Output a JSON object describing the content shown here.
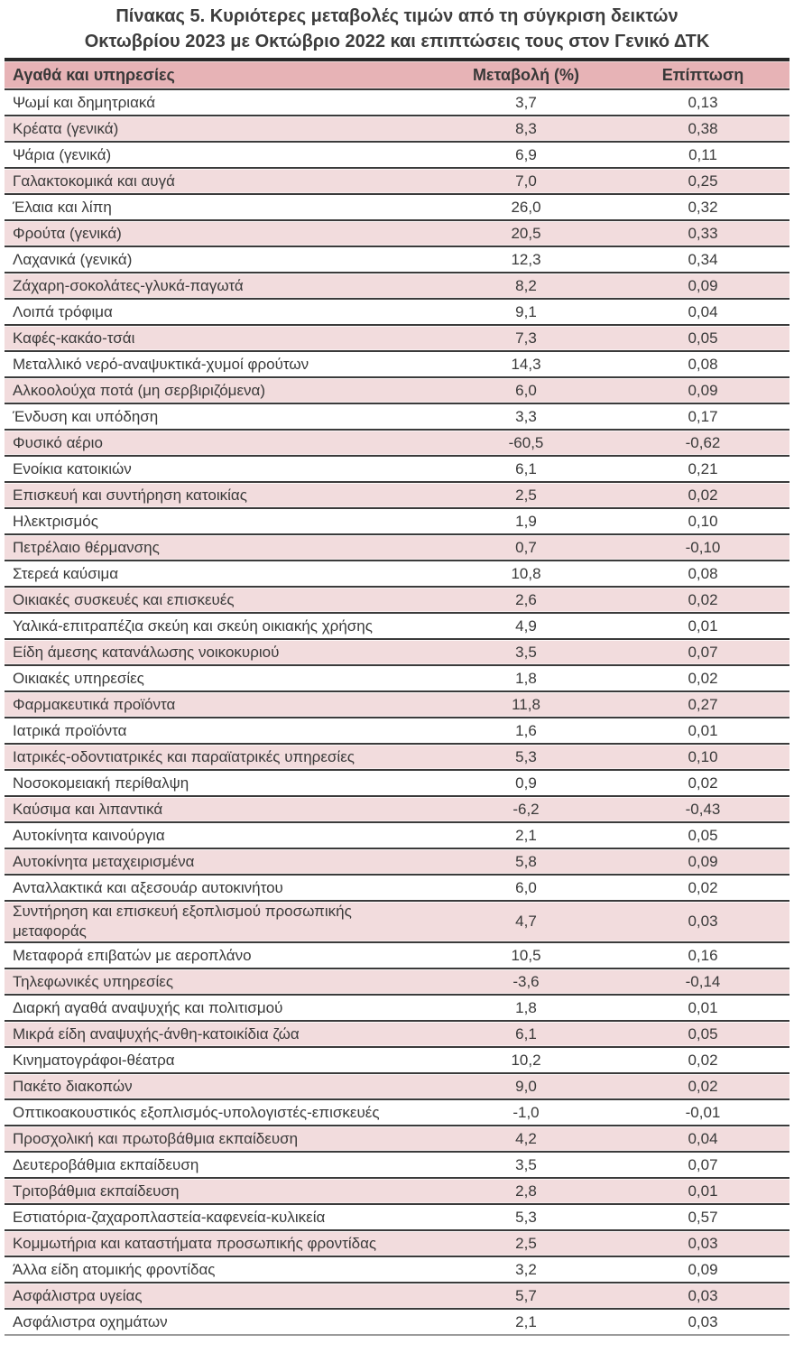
{
  "title": {
    "line1": "Πίνακας  5. Κυριότερες μεταβολές τιμών από τη σύγκριση δεικτών",
    "line2": "Οκτωβρίου 2023 με Οκτώβριο 2022 και επιπτώσεις τους στον Γενικό ΔΤΚ"
  },
  "table": {
    "headers": {
      "goods": "Αγαθά και υπηρεσίες",
      "change": "Μεταβολή (%)",
      "impact": "Επίπτωση"
    },
    "rows": [
      {
        "label": "Ψωμί και δημητριακά",
        "change": "3,7",
        "impact": "0,13"
      },
      {
        "label": "Κρέατα (γενικά)",
        "change": "8,3",
        "impact": "0,38"
      },
      {
        "label": "Ψάρια (γενικά)",
        "change": "6,9",
        "impact": "0,11"
      },
      {
        "label": "Γαλακτοκομικά και αυγά",
        "change": "7,0",
        "impact": "0,25"
      },
      {
        "label": "Έλαια και λίπη",
        "change": "26,0",
        "impact": "0,32"
      },
      {
        "label": "Φρούτα (γενικά)",
        "change": "20,5",
        "impact": "0,33"
      },
      {
        "label": "Λαχανικά (γενικά)",
        "change": "12,3",
        "impact": "0,34"
      },
      {
        "label": "Ζάχαρη-σοκολάτες-γλυκά-παγωτά",
        "change": "8,2",
        "impact": "0,09"
      },
      {
        "label": "Λοιπά τρόφιμα",
        "change": "9,1",
        "impact": "0,04"
      },
      {
        "label": "Καφές-κακάο-τσάι",
        "change": "7,3",
        "impact": "0,05"
      },
      {
        "label": "Μεταλλικό νερό-αναψυκτικά-χυμοί φρούτων",
        "change": "14,3",
        "impact": "0,08"
      },
      {
        "label": "Αλκοολούχα ποτά (μη σερβιριζόμενα)",
        "change": "6,0",
        "impact": "0,09"
      },
      {
        "label": "Ένδυση και υπόδηση",
        "change": "3,3",
        "impact": "0,17"
      },
      {
        "label": "Φυσικό αέριο",
        "change": "-60,5",
        "impact": "-0,62"
      },
      {
        "label": "Ενοίκια κατοικιών",
        "change": "6,1",
        "impact": "0,21"
      },
      {
        "label": "Επισκευή και συντήρηση κατοικίας",
        "change": "2,5",
        "impact": "0,02"
      },
      {
        "label": "Ηλεκτρισμός",
        "change": "1,9",
        "impact": "0,10"
      },
      {
        "label": "Πετρέλαιο θέρμανσης",
        "change": "0,7",
        "impact": "-0,10"
      },
      {
        "label": "Στερεά καύσιμα",
        "change": "10,8",
        "impact": "0,08"
      },
      {
        "label": "Οικιακές συσκευές και επισκευές",
        "change": "2,6",
        "impact": "0,02"
      },
      {
        "label": "Υαλικά-επιτραπέζια σκεύη και σκεύη οικιακής χρήσης",
        "change": "4,9",
        "impact": "0,01"
      },
      {
        "label": "Είδη άμεσης κατανάλωσης νοικοκυριού",
        "change": "3,5",
        "impact": "0,07"
      },
      {
        "label": "Οικιακές υπηρεσίες",
        "change": "1,8",
        "impact": "0,02"
      },
      {
        "label": "Φαρμακευτικά προϊόντα",
        "change": "11,8",
        "impact": "0,27"
      },
      {
        "label": "Ιατρικά προϊόντα",
        "change": "1,6",
        "impact": "0,01"
      },
      {
        "label": "Ιατρικές-οδοντιατρικές και παραϊατρικές υπηρεσίες",
        "change": "5,3",
        "impact": "0,10"
      },
      {
        "label": "Νοσοκομειακή περίθαλψη",
        "change": "0,9",
        "impact": "0,02"
      },
      {
        "label": "Καύσιμα και λιπαντικά",
        "change": "-6,2",
        "impact": "-0,43"
      },
      {
        "label": "Αυτοκίνητα καινούργια",
        "change": "2,1",
        "impact": "0,05"
      },
      {
        "label": "Αυτοκίνητα μεταχειρισμένα",
        "change": "5,8",
        "impact": "0,09"
      },
      {
        "label": "Ανταλλακτικά και αξεσουάρ αυτοκινήτου",
        "change": "6,0",
        "impact": "0,02"
      },
      {
        "label": "Συντήρηση και επισκευή εξοπλισμού προσωπικής\nμεταφοράς",
        "change": "4,7",
        "impact": "0,03"
      },
      {
        "label": "Μεταφορά επιβατών με αεροπλάνο",
        "change": "10,5",
        "impact": "0,16"
      },
      {
        "label": "Τηλεφωνικές υπηρεσίες",
        "change": "-3,6",
        "impact": "-0,14"
      },
      {
        "label": "Διαρκή αγαθά αναψυχής και πολιτισμού",
        "change": "1,8",
        "impact": "0,01"
      },
      {
        "label": "Μικρά είδη αναψυχής-άνθη-κατοικίδια ζώα",
        "change": "6,1",
        "impact": "0,05"
      },
      {
        "label": "Κινηματογράφοι-θέατρα",
        "change": "10,2",
        "impact": "0,02"
      },
      {
        "label": "Πακέτο διακοπών",
        "change": "9,0",
        "impact": "0,02"
      },
      {
        "label": "Οπτικοακουστικός εξοπλισμός-υπολογιστές-επισκευές",
        "change": "-1,0",
        "impact": "-0,01"
      },
      {
        "label": "Προσχολική και πρωτοβάθμια εκπαίδευση",
        "change": "4,2",
        "impact": "0,04"
      },
      {
        "label": "Δευτεροβάθμια εκπαίδευση",
        "change": "3,5",
        "impact": "0,07"
      },
      {
        "label": "Τριτοβάθμια εκπαίδευση",
        "change": "2,8",
        "impact": "0,01"
      },
      {
        "label": "Εστιατόρια-ζαχαροπλαστεία-καφενεία-κυλικεία",
        "change": "5,3",
        "impact": "0,57"
      },
      {
        "label": "Κομμωτήρια και καταστήματα προσωπικής φροντίδας",
        "change": "2,5",
        "impact": "0,03"
      },
      {
        "label": "Άλλα είδη ατομικής φροντίδας",
        "change": "3,2",
        "impact": "0,09"
      },
      {
        "label": "Ασφάλιστρα υγείας",
        "change": "5,7",
        "impact": "0,03"
      },
      {
        "label": "Ασφάλιστρα οχημάτων",
        "change": "2,1",
        "impact": "0,03"
      }
    ]
  },
  "colors": {
    "header_bg": "#E7B3B6",
    "row_alt_bg": "#F2DCDD",
    "border_dark": "#3B3B3B",
    "text": "#3F3F3F"
  }
}
